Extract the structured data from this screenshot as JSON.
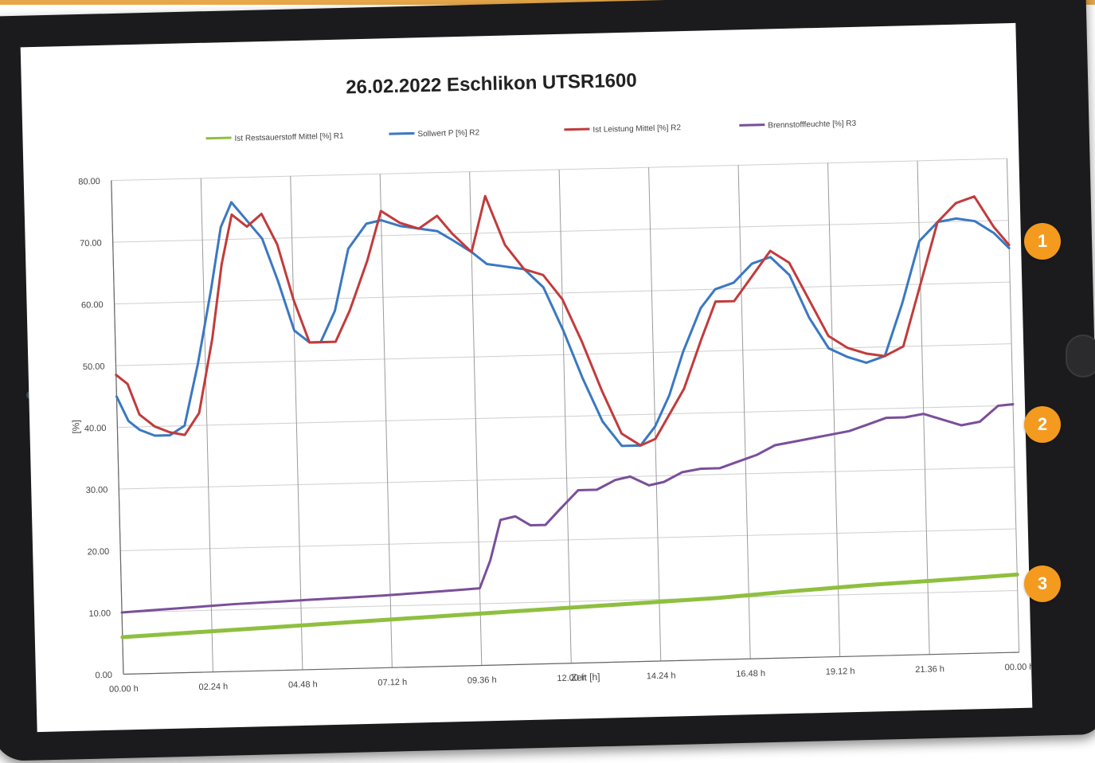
{
  "chart_data": {
    "type": "line",
    "title": "26.02.2022 Eschlikon UTSR1600",
    "xlabel": "Zeit [h]",
    "ylabel": "[%]",
    "ylim": [
      0,
      80
    ],
    "xlim": [
      0,
      24
    ],
    "grid": true,
    "legend_position": "top",
    "y_ticks": [
      "0.00",
      "10.00",
      "20.00",
      "30.00",
      "40.00",
      "50.00",
      "60.00",
      "70.00",
      "80.00"
    ],
    "x_ticks": [
      "00.00 h",
      "02.24 h",
      "04.48 h",
      "07.12 h",
      "09.36 h",
      "12.00 h",
      "14.24 h",
      "16.48 h",
      "19.12 h",
      "21.36 h",
      "00.00 h"
    ],
    "series": [
      {
        "name": "Ist Restsauerstoff Mittel [%] R1",
        "color": "#8fbf3f",
        "x": [
          0,
          2,
          4,
          6,
          8,
          10,
          12,
          14,
          16,
          18,
          20,
          22,
          24
        ],
        "y": [
          6,
          6.5,
          7,
          7.5,
          8,
          8.5,
          9,
          9.5,
          10,
          10.8,
          11.5,
          12,
          12.6
        ]
      },
      {
        "name": "Sollwert P [%] R2",
        "color": "#3a78c2",
        "x": [
          0,
          0.3,
          0.6,
          1.0,
          1.4,
          1.8,
          2.2,
          2.6,
          2.9,
          3.2,
          3.6,
          4.0,
          4.4,
          4.8,
          5.2,
          5.5,
          5.9,
          6.3,
          6.8,
          7.2,
          7.7,
          8.2,
          8.7,
          9.1,
          9.6,
          10.0,
          10.5,
          11.0,
          11.5,
          12.0,
          12.5,
          13.0,
          13.5,
          14.0,
          14.4,
          14.8,
          15.2,
          15.7,
          16.1,
          16.6,
          17.1,
          17.6,
          18.1,
          18.6,
          19.1,
          19.6,
          20.1,
          20.6,
          21.1,
          21.6,
          22.1,
          22.6,
          23.1,
          23.6,
          24.0
        ],
        "y": [
          45,
          41,
          39.5,
          38.5,
          38.5,
          40,
          50,
          62,
          72,
          76,
          73,
          70,
          63,
          55,
          53,
          53,
          58,
          68,
          72,
          72.5,
          71.5,
          71,
          70.5,
          69,
          67,
          65,
          64.5,
          64,
          61,
          54,
          46,
          39,
          35,
          35,
          38,
          43,
          50,
          57,
          60,
          61,
          64,
          65,
          62,
          55,
          50,
          48.5,
          47.5,
          48.5,
          57,
          67,
          70,
          70.5,
          70,
          68,
          65.5
        ]
      },
      {
        "name": "Ist Leistung Mittel [%] R2",
        "color": "#c23b3b",
        "x": [
          0,
          0.3,
          0.6,
          1.0,
          1.4,
          1.8,
          2.2,
          2.6,
          2.9,
          3.2,
          3.6,
          4.0,
          4.4,
          4.8,
          5.2,
          5.5,
          5.9,
          6.3,
          6.8,
          7.2,
          7.7,
          8.2,
          8.7,
          9.1,
          9.6,
          10.0,
          10.5,
          11.0,
          11.5,
          12.0,
          12.5,
          13.0,
          13.5,
          14.0,
          14.4,
          14.8,
          15.2,
          15.7,
          16.1,
          16.6,
          17.1,
          17.6,
          18.1,
          18.6,
          19.1,
          19.6,
          20.1,
          20.6,
          21.1,
          21.6,
          22.1,
          22.6,
          23.1,
          23.6,
          24.0
        ],
        "y": [
          48.5,
          47,
          42,
          40,
          39,
          38.5,
          42,
          54,
          66,
          74,
          72,
          74,
          69,
          60,
          53,
          53,
          53,
          58,
          66,
          74,
          72,
          71,
          73,
          70,
          67,
          76,
          68,
          64,
          63,
          59,
          52,
          44,
          37,
          35,
          36,
          40,
          44,
          52,
          58,
          58,
          62,
          66,
          64,
          58,
          52,
          50,
          49,
          48.5,
          50,
          60,
          70,
          73,
          74,
          69,
          66
        ]
      },
      {
        "name": "Brennstofffeuchte [%] R3",
        "color": "#7a4f9a",
        "x": [
          0,
          1,
          2,
          3,
          4,
          5,
          6,
          7,
          8,
          9,
          9.6,
          9.9,
          10.2,
          10.6,
          11.0,
          11.4,
          11.8,
          12.3,
          12.8,
          13.3,
          13.7,
          14.2,
          14.6,
          15.1,
          15.6,
          16.1,
          16.6,
          17.1,
          17.6,
          18.1,
          18.6,
          19.1,
          19.6,
          20.1,
          20.6,
          21.1,
          21.6,
          22.1,
          22.6,
          23.1,
          23.6,
          24.0
        ],
        "y": [
          10,
          10.3,
          10.6,
          10.9,
          11.1,
          11.3,
          11.5,
          11.7,
          12.0,
          12.3,
          12.5,
          17,
          23.5,
          24,
          22.5,
          22.5,
          25,
          28,
          28,
          29.5,
          30,
          28.5,
          29,
          30.5,
          31,
          31,
          32,
          33,
          34.5,
          35,
          35.5,
          36,
          36.5,
          37.5,
          38.5,
          38.5,
          39,
          38,
          37,
          37.5,
          40,
          40.2
        ]
      }
    ]
  },
  "badges": [
    "1",
    "2",
    "3"
  ]
}
